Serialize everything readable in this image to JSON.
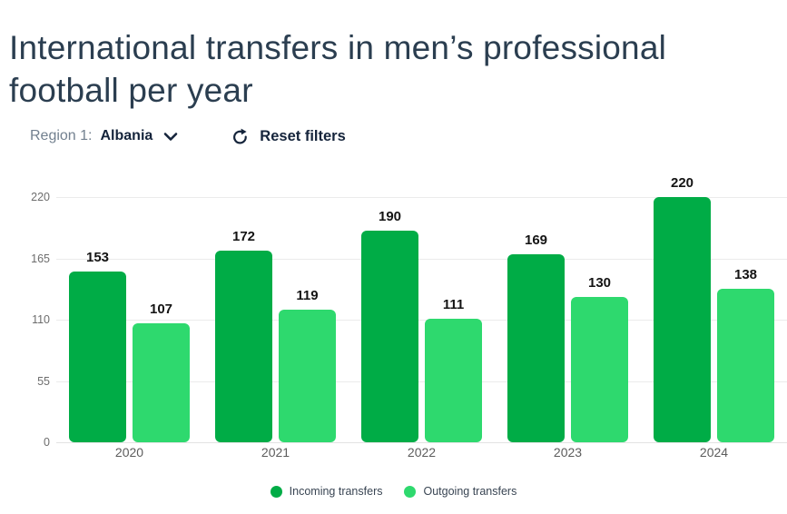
{
  "page": {
    "title": "International transfers in men’s professional football per year"
  },
  "filters": {
    "region_label": "Region 1:",
    "region_value": "Albania",
    "reset_label": "Reset filters"
  },
  "chart_data": {
    "type": "bar",
    "title": "International transfers in men’s professional football per year",
    "categories": [
      "2020",
      "2021",
      "2022",
      "2023",
      "2024"
    ],
    "series": [
      {
        "name": "Incoming transfers",
        "color": "#00ac46",
        "values": [
          153,
          172,
          190,
          169,
          220
        ]
      },
      {
        "name": "Outgoing transfers",
        "color": "#2ed96e",
        "values": [
          107,
          119,
          111,
          130,
          138
        ]
      }
    ],
    "xlabel": "",
    "ylabel": "",
    "ylim": [
      0,
      220
    ],
    "yticks": [
      0,
      55,
      110,
      165,
      220
    ],
    "grid": "horizontal",
    "legend_position": "bottom",
    "value_labels": true
  }
}
